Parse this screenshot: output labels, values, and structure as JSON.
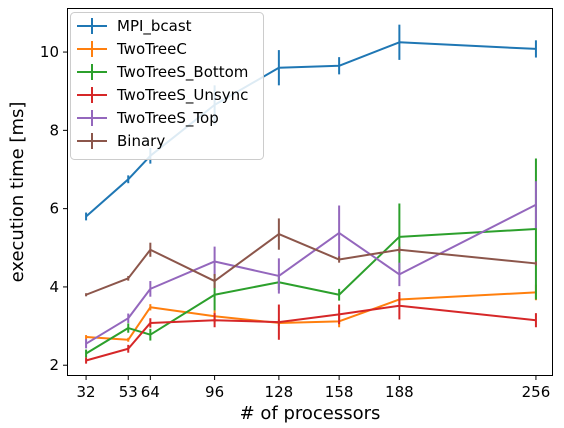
{
  "chart_data": {
    "type": "line",
    "xlabel": "# of processors",
    "ylabel": "execution time [ms]",
    "x": [
      32,
      53,
      64,
      96,
      128,
      158,
      188,
      256
    ],
    "x_ticks": [
      "32",
      "53",
      "64",
      "96",
      "128",
      "158",
      "188",
      "256"
    ],
    "y_ticks": [
      "2",
      "4",
      "6",
      "8",
      "10"
    ],
    "xlim": [
      23,
      264
    ],
    "ylim": [
      1.75,
      11.1
    ],
    "grid": false,
    "legend_position": "top-left",
    "series": [
      {
        "name": "MPI_bcast",
        "color": "#1f77b4",
        "values": [
          5.8,
          6.75,
          7.35,
          8.65,
          9.6,
          9.65,
          10.25,
          10.08
        ],
        "errors": [
          0.1,
          0.1,
          0.2,
          0.5,
          0.45,
          0.22,
          0.45,
          0.22
        ]
      },
      {
        "name": "TwoTreeC",
        "color": "#ff7f0e",
        "values": [
          2.72,
          2.65,
          3.48,
          3.25,
          3.08,
          3.12,
          3.68,
          3.86
        ],
        "errors": [
          0.05,
          0.05,
          0.08,
          0.15,
          0.08,
          0.15,
          0.12,
          0.2
        ]
      },
      {
        "name": "TwoTreeS_Bottom",
        "color": "#2ca02c",
        "values": [
          2.3,
          2.95,
          2.78,
          3.8,
          4.12,
          3.8,
          5.28,
          5.48
        ],
        "errors": [
          0.1,
          0.12,
          0.15,
          0.4,
          0.2,
          0.15,
          0.85,
          1.8
        ]
      },
      {
        "name": "TwoTreeS_Unsync",
        "color": "#d62728",
        "values": [
          2.12,
          2.42,
          3.08,
          3.15,
          3.1,
          3.3,
          3.52,
          3.15
        ],
        "errors": [
          0.08,
          0.1,
          0.12,
          0.18,
          0.45,
          0.25,
          0.35,
          0.18
        ]
      },
      {
        "name": "TwoTreeS_Top",
        "color": "#9467bd",
        "values": [
          2.55,
          3.2,
          3.95,
          4.65,
          4.28,
          5.38,
          4.32,
          6.1
        ],
        "errors": [
          0.12,
          0.12,
          0.2,
          0.38,
          0.45,
          0.7,
          0.3,
          0.6
        ]
      },
      {
        "name": "Binary",
        "color": "#8c564b",
        "values": [
          3.8,
          4.22,
          4.95,
          4.15,
          5.35,
          4.7,
          4.95,
          4.6
        ],
        "errors": [
          0.04,
          0.06,
          0.18,
          0.18,
          0.4,
          0.08,
          0.08,
          0.05
        ]
      }
    ]
  }
}
